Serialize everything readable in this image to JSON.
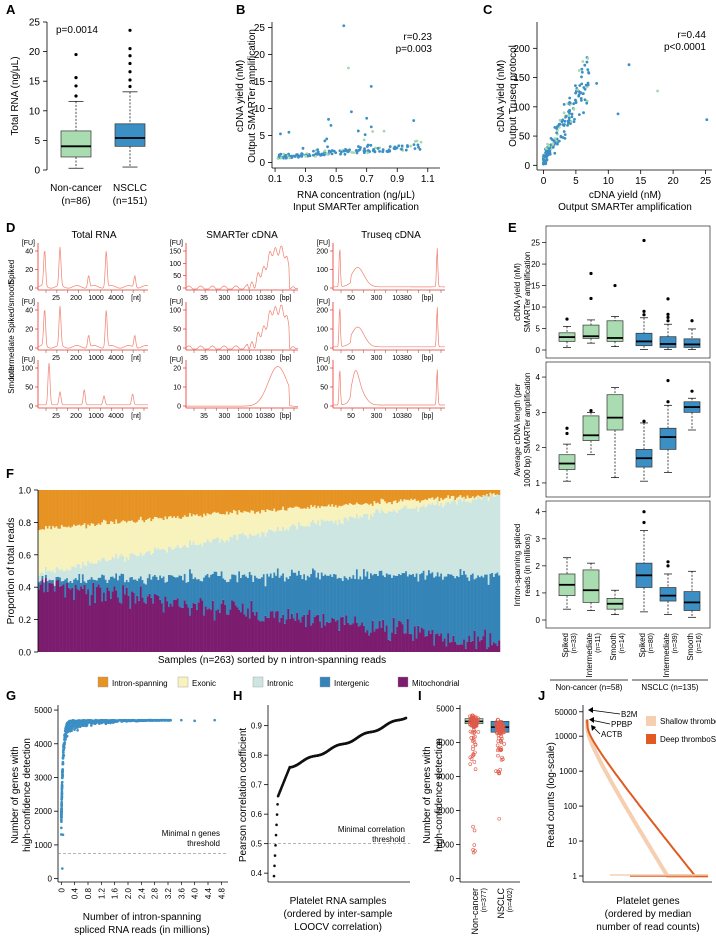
{
  "colors": {
    "green": "#a9dcb1",
    "blue": "#3b8fc4",
    "blue_light": "#72b4dc",
    "green_light": "#a6d8ae",
    "intron": "#e69324",
    "exonic": "#f8f2bc",
    "intronic": "#cde6e1",
    "intergenic": "#3584b8",
    "mito": "#7c1c6f",
    "trace": "#f08070",
    "shallow": "#f6cfb0",
    "deep": "#e05a22"
  },
  "panel_labels": [
    "A",
    "B",
    "C",
    "D",
    "E",
    "F",
    "G",
    "H",
    "I",
    "J"
  ],
  "chart_data": [
    {
      "id": "A",
      "type": "box",
      "ylabel": "Total RNA (ng/μL)",
      "annotation": "p=0.0014",
      "ylim": [
        0,
        25
      ],
      "yticks": [
        "0",
        "5",
        "10",
        "15",
        "20",
        "25"
      ],
      "groups": [
        {
          "name": "Non-cancer",
          "n": "(n=86)",
          "q1": 2.2,
          "median": 4.0,
          "q3": 6.6,
          "whisker_low": 0.3,
          "whisker_high": 11.6,
          "outliers": [
            12.5,
            14.2,
            15.6,
            19.5
          ]
        },
        {
          "name": "NSCLC",
          "n": "(n=151)",
          "q1": 4.0,
          "median": 5.4,
          "q3": 7.8,
          "whisker_low": 0.5,
          "whisker_high": 13.2,
          "outliers": [
            14.1,
            15.2,
            16.6,
            18.0,
            19.3,
            20.5,
            23.6
          ]
        }
      ]
    },
    {
      "id": "B",
      "type": "scatter",
      "xlabel": "RNA concentration (ng/μL)",
      "xlabel2": "Input SMARTer amplification",
      "ylabel": "cDNA yield (nM)",
      "ylabel2": "Output SMARTer amplification",
      "stats": [
        "r=0.23",
        "p=0.003"
      ],
      "xlim": [
        0.08,
        1.18
      ],
      "ylim": [
        -1,
        26
      ],
      "xticks": [
        "0.1",
        "0.3",
        "0.5",
        "0.7",
        "0.9",
        "1.1"
      ],
      "yticks": [
        "0",
        "5",
        "10",
        "15",
        "20",
        "25"
      ]
    },
    {
      "id": "C",
      "type": "scatter",
      "xlabel": "cDNA yield (nM)",
      "xlabel2": "Output SMARTer amplification",
      "ylabel": "cDNA yield (nM)",
      "ylabel2": "Output Truseq protocol",
      "stats": [
        "r=0.44",
        "p<0.0001"
      ],
      "xlim": [
        -1,
        26
      ],
      "ylim": [
        -8,
        245
      ],
      "xticks": [
        "0",
        "5",
        "10",
        "15",
        "20",
        "25"
      ],
      "yticks": [
        "0",
        "50",
        "100",
        "150",
        "200"
      ]
    },
    {
      "id": "D",
      "type": "line",
      "columns": [
        "Total RNA",
        "SMARTer cDNA",
        "Truseq cDNA"
      ],
      "rows": [
        "Spiked",
        "Intermediate Spiked/smooth",
        "Smooth"
      ],
      "yunit": "[FU]",
      "total_yticks": [
        "0",
        "20",
        "40"
      ],
      "smarter_yticks_top": [
        "0",
        "50",
        "100",
        "150"
      ],
      "smarter_yticks_mid": [
        "0",
        "50",
        "100"
      ],
      "smarter_yticks_bot": [
        "0",
        "10",
        "20"
      ],
      "truseq_yticks": [
        "0",
        "100",
        "200"
      ],
      "smooth_total_yticks": [
        "0",
        "50",
        "100"
      ],
      "smooth_truseq_yticks": [
        "0",
        "50",
        "100"
      ],
      "total_xticks": [
        "25",
        "200",
        "1000",
        "4000",
        "[nt]"
      ],
      "smarter_xticks": [
        "35",
        "300",
        "1000",
        "10380",
        "[bp]"
      ],
      "truseq_xticks": [
        "50",
        "300",
        "10380",
        "[bp]"
      ]
    },
    {
      "id": "E",
      "type": "box",
      "panels": [
        {
          "ylabel": "cDNA yield (nM)",
          "ylabel2": "SMARTer amplification",
          "ylim": [
            0,
            27
          ],
          "yticks": [
            "0",
            "5",
            "10",
            "15",
            "20",
            "25"
          ],
          "boxes": [
            {
              "q1": 2.0,
              "median": 3.0,
              "q3": 4.0,
              "lo": 0.6,
              "hi": 5.5,
              "out": [
                7.2
              ]
            },
            {
              "q1": 2.7,
              "median": 3.2,
              "q3": 5.8,
              "lo": 1.6,
              "hi": 7.0,
              "out": [
                12.0,
                17.8
              ]
            },
            {
              "q1": 2.0,
              "median": 2.8,
              "q3": 6.8,
              "lo": 0.8,
              "hi": 7.8,
              "out": [
                15.0
              ]
            },
            {
              "q1": 1.0,
              "median": 2.0,
              "q3": 3.9,
              "lo": 0.1,
              "hi": 7.5,
              "out": [
                8.2,
                9.0,
                25.5
              ]
            },
            {
              "q1": 0.6,
              "median": 1.4,
              "q3": 3.1,
              "lo": 0.1,
              "hi": 6.0,
              "out": [
                6.8,
                7.6,
                8.3,
                11.9
              ]
            },
            {
              "q1": 0.6,
              "median": 1.3,
              "q3": 2.6,
              "lo": 0.1,
              "hi": 4.9,
              "out": [
                6.8
              ]
            }
          ]
        },
        {
          "ylabel": "Average cDNA length (per",
          "ylabel2": "1000 bp) SMARTer amplification",
          "ylim": [
            0.8,
            4.2
          ],
          "yticks": [
            "1",
            "2",
            "3",
            "4"
          ],
          "boxes": [
            {
              "q1": 1.38,
              "median": 1.55,
              "q3": 1.8,
              "lo": 1.05,
              "hi": 2.1,
              "out": [
                2.4,
                2.55
              ]
            },
            {
              "q1": 2.2,
              "median": 2.35,
              "q3": 2.9,
              "lo": 1.8,
              "hi": 3.0,
              "out": [
                3.05
              ]
            },
            {
              "q1": 2.5,
              "median": 2.85,
              "q3": 3.5,
              "lo": 1.15,
              "hi": 3.7,
              "out": []
            },
            {
              "q1": 1.45,
              "median": 1.7,
              "q3": 1.95,
              "lo": 1.05,
              "hi": 2.7,
              "out": [
                2.75
              ]
            },
            {
              "q1": 1.95,
              "median": 2.3,
              "q3": 2.55,
              "lo": 1.3,
              "hi": 3.2,
              "out": [
                3.3,
                3.9
              ]
            },
            {
              "q1": 3.0,
              "median": 3.15,
              "q3": 3.3,
              "lo": 2.5,
              "hi": 3.4,
              "out": [
                3.6
              ]
            }
          ]
        },
        {
          "ylabel": "Intron-spanning spliced",
          "ylabel2": "reads (in millions)",
          "ylim": [
            0,
            4.1
          ],
          "yticks": [
            "0",
            "1",
            "2",
            "3",
            "4"
          ],
          "boxes": [
            {
              "q1": 0.9,
              "median": 1.3,
              "q3": 1.7,
              "lo": 0.4,
              "hi": 2.3,
              "out": []
            },
            {
              "q1": 0.65,
              "median": 1.1,
              "q3": 1.85,
              "lo": 0.35,
              "hi": 2.1,
              "out": []
            },
            {
              "q1": 0.4,
              "median": 0.6,
              "q3": 0.8,
              "lo": 0.2,
              "hi": 1.1,
              "out": []
            },
            {
              "q1": 1.2,
              "median": 1.65,
              "q3": 2.1,
              "lo": 0.3,
              "hi": 3.3,
              "out": [
                3.6,
                4.0
              ]
            },
            {
              "q1": 0.7,
              "median": 0.9,
              "q3": 1.2,
              "lo": 0.2,
              "hi": 1.7,
              "out": [
                2.0,
                2.15
              ]
            },
            {
              "q1": 0.35,
              "median": 0.65,
              "q3": 1.05,
              "lo": 0.1,
              "hi": 1.8,
              "out": []
            }
          ]
        }
      ],
      "categories": [
        "Spiked",
        "Intermediate",
        "Smooth",
        "Spiked",
        "Intermediate",
        "Smooth"
      ],
      "ns": [
        "(n=33)",
        "(n=11)",
        "(n=14)",
        "(n=80)",
        "(n=39)",
        "(n=16)"
      ],
      "group_labels": [
        "Non-cancer (n=58)",
        "NSCLC (n=135)"
      ]
    },
    {
      "id": "F",
      "type": "bar",
      "stacked": true,
      "n_samples": 263,
      "ylabel": "Proportion of total reads",
      "xlabel": "Samples (n=263) sorted by n intron-spanning reads",
      "yticks": [
        "0.0",
        "0.2",
        "0.4",
        "0.6",
        "0.8",
        "1.0"
      ],
      "series": [
        "Intron-spanning",
        "Exonic",
        "Intronic",
        "Intergenic",
        "Mitochondrial"
      ],
      "trend": {
        "intron_start": 0.25,
        "intron_end": 0.03,
        "exonic_start": 0.28,
        "exonic_end": 0.0,
        "intronic_start": 0.05,
        "intronic_end": 0.5,
        "mito_start": 0.42,
        "mito_end": 0.05
      }
    },
    {
      "id": "G",
      "type": "scatter",
      "ylabel": "Number of genes with",
      "ylabel2": "high-confidence detection",
      "xlabel": "Number of intron-spanning",
      "xlabel2": "spliced RNA reads (in millions)",
      "threshold_label": [
        "Minimal n genes",
        "threshold"
      ],
      "threshold": 750,
      "xlim": [
        -0.1,
        5.0
      ],
      "ylim": [
        -100,
        5150
      ],
      "xticks": [
        "0",
        "0.4",
        "0.8",
        "1.2",
        "1.6",
        "2.0",
        "2.4",
        "2.8",
        "3.2",
        "3.6",
        "4.0",
        "4.4",
        "4.8"
      ],
      "yticks": [
        "0",
        "1000",
        "2000",
        "3000",
        "4000",
        "5000"
      ]
    },
    {
      "id": "H",
      "type": "scatter",
      "ylabel": "Pearson correlation coefficient",
      "xlabel": "Platelet RNA samples",
      "xlabel2": "(ordered by inter-sample",
      "xlabel3": "LOOCV correlation)",
      "threshold_label": [
        "Minimal correlation",
        "threshold"
      ],
      "threshold": 0.5,
      "ylim": [
        0.37,
        0.97
      ],
      "yticks": [
        "0.4",
        "0.5",
        "0.6",
        "0.7",
        "0.8",
        "0.9"
      ]
    },
    {
      "id": "I",
      "type": "box",
      "ylabel": "Number of genes with",
      "ylabel2": "high-confidence detection",
      "ylim": [
        -100,
        5100
      ],
      "yticks": [
        "0",
        "1000",
        "2000",
        "3000",
        "4000",
        "5000"
      ],
      "groups": [
        {
          "name": "Non-cancer",
          "n": "(n=377)",
          "q1": 4550,
          "median": 4620,
          "q3": 4700
        },
        {
          "name": "NSCLC",
          "n": "(n=402)",
          "q1": 4300,
          "median": 4450,
          "q3": 4620
        }
      ]
    },
    {
      "id": "J",
      "type": "line",
      "ylabel": "Read counts (log-scale)",
      "xlabel": "Platelet genes",
      "xlabel2": "(ordered by median",
      "xlabel3": "number of read counts)",
      "yticks": [
        "1",
        "10",
        "100",
        "1000",
        "10000",
        "50000"
      ],
      "annotations": [
        "B2M",
        "PPBP",
        "ACTB"
      ],
      "legend": [
        "Shallow thromboSeq",
        "Deep thromboSeq"
      ]
    }
  ]
}
